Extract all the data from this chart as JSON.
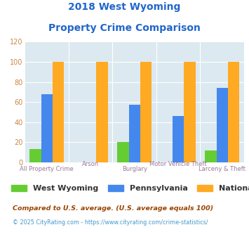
{
  "title_line1": "2018 West Wyoming",
  "title_line2": "Property Crime Comparison",
  "categories": [
    "All Property Crime",
    "Arson",
    "Burglary",
    "Motor Vehicle Theft",
    "Larceny & Theft"
  ],
  "west_wyoming": [
    13,
    0,
    20,
    0,
    12
  ],
  "pennsylvania": [
    68,
    0,
    57,
    46,
    74
  ],
  "national": [
    100,
    100,
    100,
    100,
    100
  ],
  "colors": {
    "west_wyoming": "#66cc33",
    "pennsylvania": "#4488ee",
    "national": "#ffaa22"
  },
  "ylim": [
    0,
    120
  ],
  "yticks": [
    0,
    20,
    40,
    60,
    80,
    100,
    120
  ],
  "legend_labels": [
    "West Wyoming",
    "Pennsylvania",
    "National"
  ],
  "footnote1": "Compared to U.S. average. (U.S. average equals 100)",
  "footnote2": "© 2025 CityRating.com - https://www.cityrating.com/crime-statistics/",
  "bg_color": "#dce9f0",
  "title_color": "#2266cc",
  "footnote1_color": "#994400",
  "footnote2_color": "#4499cc",
  "xlabel_color": "#997799",
  "ytick_color": "#cc8844"
}
